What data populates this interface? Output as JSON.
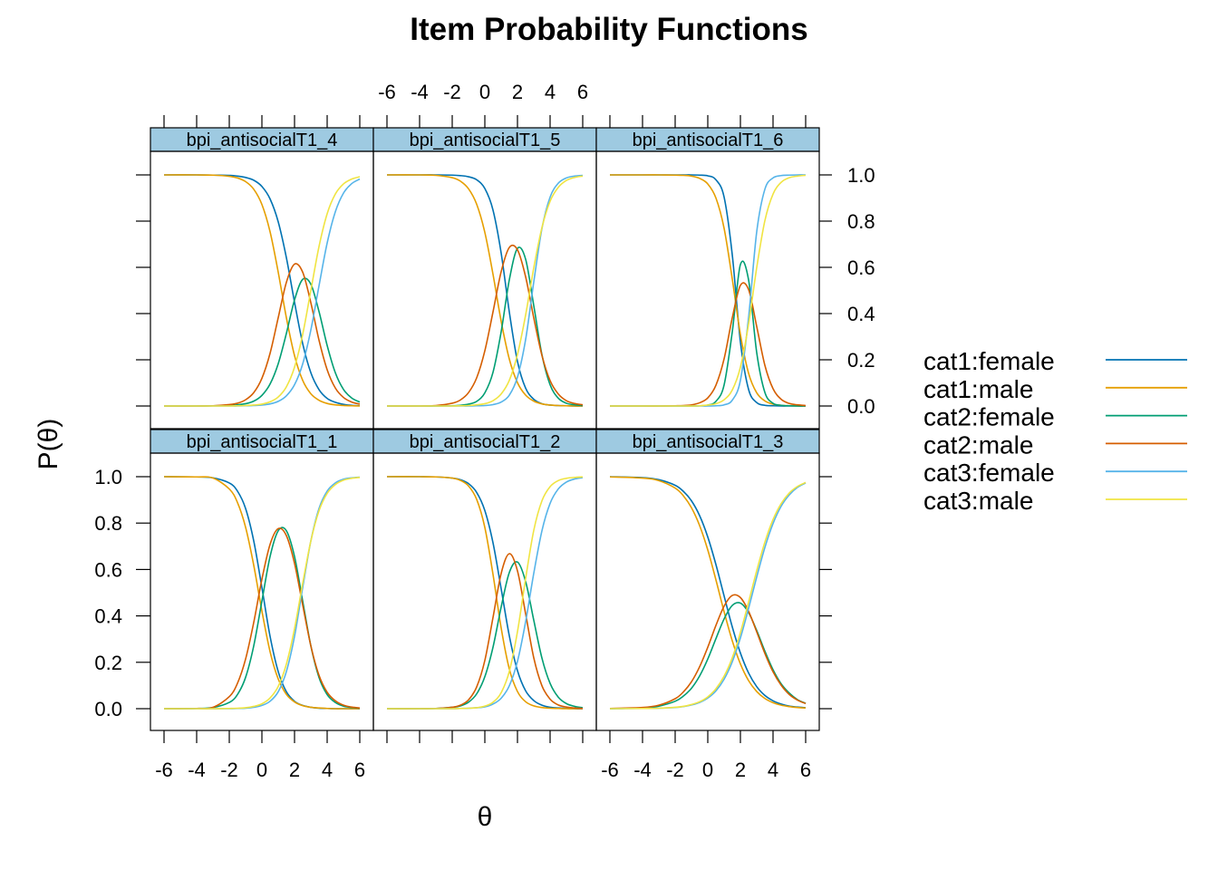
{
  "chart_data": {
    "type": "line",
    "title": "Item Probability Functions",
    "xlabel": "θ",
    "ylabel": "P(θ)",
    "xlim": [
      -6,
      6
    ],
    "ylim": [
      0,
      1
    ],
    "x_ticks": [
      "-6",
      "-4",
      "-2",
      "0",
      "2",
      "4",
      "6"
    ],
    "y_ticks": [
      "0.0",
      "0.2",
      "0.4",
      "0.6",
      "0.8",
      "1.0"
    ],
    "grid": false,
    "legend_position": "right",
    "legend": [
      {
        "name": "cat1:female",
        "color": "#0072B2"
      },
      {
        "name": "cat1:male",
        "color": "#E69F00"
      },
      {
        "name": "cat2:female",
        "color": "#009E73"
      },
      {
        "name": "cat2:male",
        "color": "#D55E00"
      },
      {
        "name": "cat3:female",
        "color": "#56B4E9"
      },
      {
        "name": "cat3:male",
        "color": "#F0E442"
      }
    ],
    "x": [
      -6,
      -4,
      -3,
      -2,
      -1.5,
      -1,
      -0.5,
      0,
      0.5,
      1,
      1.5,
      2,
      2.5,
      3,
      3.5,
      4,
      4.5,
      5,
      5.5,
      6
    ],
    "panels": [
      {
        "title": "bpi_antisocialT1_4",
        "series": [
          {
            "name": "cat1:female",
            "values": [
              1,
              1,
              0.999,
              0.998,
              0.995,
              0.989,
              0.977,
              0.95,
              0.896,
              0.797,
              0.642,
              0.449,
              0.27,
              0.144,
              0.071,
              0.033,
              0.016,
              0.007,
              0.003,
              0.001
            ]
          },
          {
            "name": "cat1:male",
            "values": [
              1,
              1,
              0.999,
              0.994,
              0.987,
              0.971,
              0.938,
              0.872,
              0.754,
              0.579,
              0.382,
              0.218,
              0.111,
              0.053,
              0.025,
              0.011,
              0.005,
              0.002,
              0.001,
              0
            ]
          },
          {
            "name": "cat2:female",
            "values": [
              0,
              0,
              0.001,
              0.002,
              0.005,
              0.01,
              0.021,
              0.046,
              0.095,
              0.183,
              0.314,
              0.459,
              0.548,
              0.527,
              0.409,
              0.262,
              0.144,
              0.072,
              0.035,
              0.017
            ]
          },
          {
            "name": "cat2:male",
            "values": [
              0,
              0,
              0.001,
              0.006,
              0.012,
              0.027,
              0.058,
              0.12,
              0.228,
              0.382,
              0.535,
              0.614,
              0.579,
              0.447,
              0.285,
              0.157,
              0.078,
              0.037,
              0.017,
              0.008
            ]
          },
          {
            "name": "cat3:female",
            "values": [
              0,
              0,
              0,
              0,
              0,
              0.001,
              0.002,
              0.004,
              0.009,
              0.02,
              0.044,
              0.092,
              0.182,
              0.329,
              0.52,
              0.705,
              0.84,
              0.921,
              0.962,
              0.982
            ]
          },
          {
            "name": "cat3:male",
            "values": [
              0,
              0,
              0,
              0,
              0.001,
              0.002,
              0.004,
              0.008,
              0.018,
              0.039,
              0.083,
              0.168,
              0.31,
              0.5,
              0.69,
              0.832,
              0.917,
              0.961,
              0.982,
              0.992
            ]
          }
        ]
      },
      {
        "title": "bpi_antisocialT1_5",
        "series": [
          {
            "name": "cat1:female",
            "values": [
              1,
              1,
              1,
              0.999,
              0.997,
              0.992,
              0.979,
              0.941,
              0.848,
              0.662,
              0.407,
              0.193,
              0.077,
              0.029,
              0.01,
              0.004,
              0.002,
              0.001,
              0,
              0
            ]
          },
          {
            "name": "cat1:male",
            "values": [
              1,
              1,
              0.998,
              0.988,
              0.973,
              0.94,
              0.873,
              0.751,
              0.57,
              0.367,
              0.203,
              0.101,
              0.047,
              0.021,
              0.009,
              0.004,
              0.002,
              0.001,
              0,
              0
            ]
          },
          {
            "name": "cat2:female",
            "values": [
              0,
              0,
              0,
              0.001,
              0.003,
              0.008,
              0.02,
              0.057,
              0.146,
              0.321,
              0.546,
              0.682,
              0.635,
              0.434,
              0.222,
              0.092,
              0.034,
              0.012,
              0.005,
              0.002
            ]
          },
          {
            "name": "cat2:male",
            "values": [
              0,
              0,
              0.002,
              0.012,
              0.026,
              0.058,
              0.122,
              0.239,
              0.407,
              0.581,
              0.686,
              0.676,
              0.559,
              0.381,
              0.219,
              0.11,
              0.052,
              0.023,
              0.011,
              0.005
            ]
          },
          {
            "name": "cat3:female",
            "values": [
              0,
              0,
              0,
              0,
              0,
              0,
              0.001,
              0.002,
              0.006,
              0.017,
              0.047,
              0.125,
              0.288,
              0.537,
              0.768,
              0.904,
              0.964,
              0.987,
              0.995,
              0.998
            ]
          },
          {
            "name": "cat3:male",
            "values": [
              0,
              0,
              0,
              0,
              0.001,
              0.002,
              0.005,
              0.01,
              0.023,
              0.052,
              0.111,
              0.223,
              0.394,
              0.598,
              0.772,
              0.886,
              0.946,
              0.976,
              0.989,
              0.995
            ]
          }
        ]
      },
      {
        "title": "bpi_antisocialT1_6",
        "series": [
          {
            "name": "cat1:female",
            "values": [
              1,
              1,
              1,
              1,
              1,
              1,
              0.999,
              0.996,
              0.979,
              0.904,
              0.655,
              0.277,
              0.072,
              0.015,
              0.003,
              0.001,
              0,
              0,
              0,
              0
            ]
          },
          {
            "name": "cat1:male",
            "values": [
              1,
              1,
              1,
              0.999,
              0.998,
              0.995,
              0.985,
              0.961,
              0.9,
              0.769,
              0.55,
              0.31,
              0.142,
              0.057,
              0.022,
              0.008,
              0.003,
              0.001,
              0,
              0
            ]
          },
          {
            "name": "cat2:female",
            "values": [
              0,
              0,
              0,
              0,
              0,
              0,
              0.001,
              0.004,
              0.02,
              0.091,
              0.32,
              0.612,
              0.546,
              0.231,
              0.059,
              0.012,
              0.003,
              0.001,
              0,
              0
            ]
          },
          {
            "name": "cat2:male",
            "values": [
              0,
              0,
              0,
              0.001,
              0.002,
              0.005,
              0.014,
              0.035,
              0.09,
              0.204,
              0.381,
              0.522,
              0.504,
              0.344,
              0.176,
              0.075,
              0.029,
              0.011,
              0.005,
              0.002
            ]
          },
          {
            "name": "cat3:female",
            "values": [
              0,
              0,
              0,
              0,
              0,
              0,
              0,
              0,
              0.001,
              0.005,
              0.025,
              0.111,
              0.382,
              0.754,
              0.938,
              0.987,
              0.997,
              0.999,
              1,
              1
            ]
          },
          {
            "name": "cat3:male",
            "values": [
              0,
              0,
              0,
              0,
              0,
              0,
              0.001,
              0.004,
              0.01,
              0.027,
              0.069,
              0.168,
              0.354,
              0.599,
              0.802,
              0.917,
              0.968,
              0.988,
              0.995,
              0.998
            ]
          }
        ]
      },
      {
        "title": "bpi_antisocialT1_1",
        "series": [
          {
            "name": "cat1:female",
            "values": [
              1,
              0.999,
              0.995,
              0.973,
              0.938,
              0.863,
              0.723,
              0.522,
              0.312,
              0.16,
              0.073,
              0.032,
              0.014,
              0.006,
              0.002,
              0.001,
              0,
              0,
              0,
              0
            ]
          },
          {
            "name": "cat1:male",
            "values": [
              1,
              0.999,
              0.994,
              0.947,
              0.889,
              0.782,
              0.618,
              0.421,
              0.246,
              0.128,
              0.062,
              0.029,
              0.013,
              0.006,
              0.003,
              0.001,
              0,
              0,
              0,
              0
            ]
          },
          {
            "name": "cat2:female",
            "values": [
              0,
              0.001,
              0.005,
              0.027,
              0.061,
              0.135,
              0.271,
              0.464,
              0.656,
              0.767,
              0.767,
              0.656,
              0.464,
              0.271,
              0.135,
              0.061,
              0.027,
              0.011,
              0.005,
              0.002
            ]
          },
          {
            "name": "cat2:male",
            "values": [
              0,
              0.001,
              0.006,
              0.052,
              0.109,
              0.214,
              0.372,
              0.558,
              0.708,
              0.776,
              0.746,
              0.626,
              0.447,
              0.271,
              0.144,
              0.071,
              0.034,
              0.015,
              0.007,
              0.003
            ]
          },
          {
            "name": "cat3:female",
            "values": [
              0,
              0,
              0,
              0,
              0.001,
              0.002,
              0.006,
              0.014,
              0.032,
              0.073,
              0.16,
              0.312,
              0.522,
              0.723,
              0.863,
              0.938,
              0.973,
              0.989,
              0.995,
              0.998
            ]
          },
          {
            "name": "cat3:male",
            "values": [
              0,
              0,
              0,
              0.001,
              0.002,
              0.004,
              0.01,
              0.021,
              0.046,
              0.096,
              0.192,
              0.345,
              0.54,
              0.723,
              0.853,
              0.928,
              0.966,
              0.985,
              0.993,
              0.997
            ]
          }
        ]
      },
      {
        "title": "bpi_antisocialT1_2",
        "series": [
          {
            "name": "cat1:female",
            "values": [
              1,
              1,
              0.999,
              0.994,
              0.987,
              0.97,
              0.932,
              0.854,
              0.715,
              0.517,
              0.314,
              0.164,
              0.077,
              0.035,
              0.015,
              0.006,
              0.003,
              0.001,
              0,
              0
            ]
          },
          {
            "name": "cat1:male",
            "values": [
              1,
              1,
              0.999,
              0.994,
              0.984,
              0.96,
              0.902,
              0.781,
              0.579,
              0.348,
              0.171,
              0.074,
              0.03,
              0.012,
              0.005,
              0.002,
              0.001,
              0,
              0,
              0
            ]
          },
          {
            "name": "cat2:female",
            "values": [
              0,
              0,
              0.001,
              0.006,
              0.012,
              0.028,
              0.064,
              0.138,
              0.265,
              0.438,
              0.587,
              0.632,
              0.548,
              0.381,
              0.218,
              0.109,
              0.05,
              0.022,
              0.01,
              0.004
            ]
          },
          {
            "name": "cat2:male",
            "values": [
              0,
              0,
              0.001,
              0.006,
              0.015,
              0.038,
              0.094,
              0.208,
              0.393,
              0.583,
              0.668,
              0.594,
              0.409,
              0.219,
              0.099,
              0.041,
              0.016,
              0.007,
              0.003,
              0.001
            ]
          },
          {
            "name": "cat3:female",
            "values": [
              0,
              0,
              0,
              0,
              0.001,
              0.002,
              0.004,
              0.008,
              0.02,
              0.045,
              0.099,
              0.204,
              0.375,
              0.584,
              0.767,
              0.885,
              0.947,
              0.977,
              0.99,
              0.996
            ]
          },
          {
            "name": "cat3:male",
            "values": [
              0,
              0,
              0,
              0,
              0.001,
              0.002,
              0.004,
              0.011,
              0.028,
              0.069,
              0.161,
              0.332,
              0.561,
              0.769,
              0.896,
              0.957,
              0.983,
              0.993,
              0.997,
              0.999
            ]
          }
        ]
      },
      {
        "title": "bpi_antisocialT1_3",
        "series": [
          {
            "name": "cat1:female",
            "values": [
              1,
              0.996,
              0.987,
              0.963,
              0.937,
              0.896,
              0.832,
              0.74,
              0.621,
              0.486,
              0.353,
              0.24,
              0.154,
              0.095,
              0.057,
              0.034,
              0.02,
              0.011,
              0.007,
              0.004
            ]
          },
          {
            "name": "cat1:male",
            "values": [
              0.999,
              0.994,
              0.983,
              0.951,
              0.918,
              0.866,
              0.789,
              0.684,
              0.555,
              0.418,
              0.293,
              0.193,
              0.121,
              0.074,
              0.044,
              0.026,
              0.015,
              0.009,
              0.005,
              0.003
            ]
          },
          {
            "name": "cat2:female",
            "values": [
              0,
              0.003,
              0.011,
              0.032,
              0.054,
              0.088,
              0.141,
              0.214,
              0.302,
              0.387,
              0.445,
              0.455,
              0.414,
              0.337,
              0.248,
              0.168,
              0.107,
              0.067,
              0.039,
              0.023
            ]
          },
          {
            "name": "cat2:male",
            "values": [
              0.001,
              0.005,
              0.015,
              0.043,
              0.072,
              0.116,
              0.181,
              0.265,
              0.359,
              0.442,
              0.488,
              0.479,
              0.42,
              0.331,
              0.238,
              0.159,
              0.101,
              0.061,
              0.037,
              0.022
            ]
          },
          {
            "name": "cat3:female",
            "values": [
              0,
              0.001,
              0.002,
              0.005,
              0.009,
              0.016,
              0.027,
              0.046,
              0.077,
              0.127,
              0.202,
              0.305,
              0.432,
              0.568,
              0.695,
              0.798,
              0.873,
              0.922,
              0.954,
              0.973
            ]
          },
          {
            "name": "cat3:male",
            "values": [
              0,
              0.001,
              0.002,
              0.006,
              0.01,
              0.018,
              0.03,
              0.051,
              0.086,
              0.14,
              0.219,
              0.328,
              0.459,
              0.595,
              0.718,
              0.815,
              0.884,
              0.93,
              0.958,
              0.975
            ]
          }
        ]
      }
    ]
  }
}
